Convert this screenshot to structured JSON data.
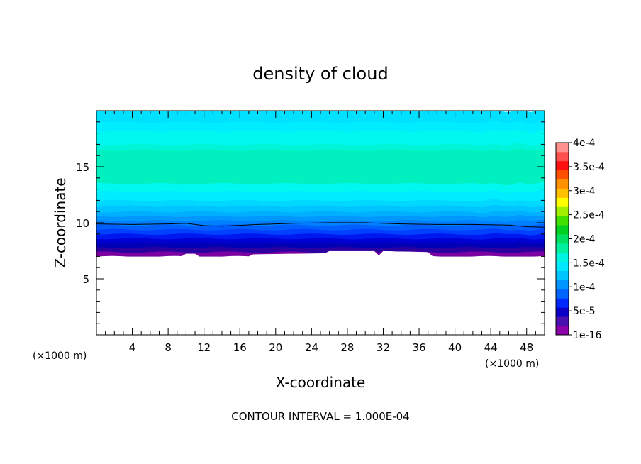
{
  "chart_data": {
    "type": "heatmap",
    "title": "density of cloud",
    "xlabel": "X-coordinate",
    "ylabel": "Z-coordinate",
    "x_unit": "(×1000 m)",
    "y_unit": "(×1000 m)",
    "xlim": [
      0,
      50
    ],
    "ylim": [
      0,
      20
    ],
    "x_ticks": [
      4,
      8,
      12,
      16,
      20,
      24,
      28,
      32,
      36,
      40,
      44,
      48
    ],
    "y_ticks": [
      5,
      10,
      15
    ],
    "note": "CONTOUR INTERVAL = 1.000E-04",
    "colorbar": {
      "labels": [
        "4e-4",
        "3.5e-4",
        "3e-4",
        "2.5e-4",
        "2e-4",
        "1.5e-4",
        "1e-4",
        "5e-5",
        "1e-16"
      ],
      "label_values": [
        0.0004,
        0.00035,
        0.0003,
        0.00025,
        0.0002,
        0.00015,
        0.0001,
        5e-05,
        1e-16
      ],
      "colors": [
        "#8b00a8",
        "#4a10b0",
        "#0a00c8",
        "#0028ff",
        "#0064ff",
        "#0096ff",
        "#00c4ff",
        "#00e8ff",
        "#00f5e0",
        "#00f0a0",
        "#00e060",
        "#00d020",
        "#40e000",
        "#a0f000",
        "#ffff00",
        "#ffc000",
        "#ff9000",
        "#ff5000",
        "#ff1010",
        "#ff5050",
        "#ff9090"
      ],
      "range": [
        0,
        0.0004
      ]
    },
    "field": {
      "cloud_base_km": 7.0,
      "cloud_base_profile": [
        [
          0,
          7.0
        ],
        [
          9.8,
          7.0
        ],
        [
          10.0,
          7.25
        ],
        [
          11.2,
          7.25
        ],
        [
          11.4,
          7.0
        ],
        [
          17,
          7.0
        ],
        [
          17.2,
          7.2
        ],
        [
          25.8,
          7.3
        ],
        [
          26.0,
          7.5
        ],
        [
          31.0,
          7.5
        ],
        [
          31.5,
          7.1
        ],
        [
          32.0,
          7.5
        ],
        [
          37.0,
          7.4
        ],
        [
          37.2,
          7.0
        ],
        [
          50,
          7.0
        ]
      ],
      "levels_z": [
        7.0,
        7.4,
        7.8,
        8.2,
        8.6,
        9.0,
        9.4,
        9.8,
        10.2,
        10.6,
        11.0,
        11.5,
        12.0,
        12.8,
        13.5,
        16.5,
        17.0,
        18.2,
        19.0,
        20.0
      ],
      "level_colors": [
        "#7a00a0",
        "#2a00a0",
        "#0000b4",
        "#0000d2",
        "#0018f0",
        "#0040ff",
        "#0060ff",
        "#0080ff",
        "#0098ff",
        "#00b0ff",
        "#00c4ff",
        "#00d8ff",
        "#00ecff",
        "#00f8f0",
        "#00f0c0",
        "#00f5d8",
        "#00f8f0",
        "#00ecff",
        "#00e0ff"
      ],
      "contour_line": [
        [
          0,
          9.9
        ],
        [
          4,
          9.85
        ],
        [
          8,
          9.9
        ],
        [
          10,
          9.95
        ],
        [
          12,
          9.75
        ],
        [
          14,
          9.7
        ],
        [
          18,
          9.85
        ],
        [
          22,
          9.95
        ],
        [
          26,
          10.0
        ],
        [
          30,
          10.0
        ],
        [
          34,
          9.9
        ],
        [
          38,
          9.85
        ],
        [
          42,
          9.85
        ],
        [
          46,
          9.8
        ],
        [
          48,
          9.65
        ],
        [
          50,
          9.6
        ]
      ]
    }
  }
}
